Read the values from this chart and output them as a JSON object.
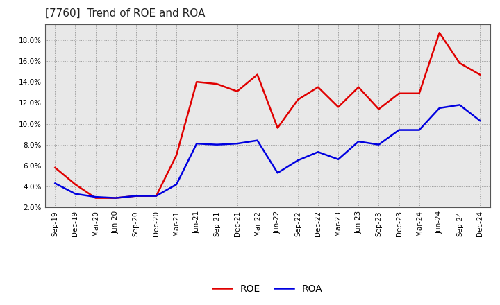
{
  "title": "[7760]  Trend of ROE and ROA",
  "labels": [
    "Sep-19",
    "Dec-19",
    "Mar-20",
    "Jun-20",
    "Sep-20",
    "Dec-20",
    "Mar-21",
    "Jun-21",
    "Sep-21",
    "Dec-21",
    "Mar-22",
    "Jun-22",
    "Sep-22",
    "Dec-22",
    "Mar-23",
    "Jun-23",
    "Sep-23",
    "Dec-23",
    "Mar-24",
    "Jun-24",
    "Sep-24",
    "Dec-24"
  ],
  "roe": [
    5.8,
    4.2,
    2.9,
    2.9,
    3.1,
    3.1,
    7.0,
    14.0,
    13.8,
    13.1,
    14.7,
    9.6,
    12.3,
    13.5,
    11.6,
    13.5,
    11.4,
    12.9,
    12.9,
    18.7,
    15.8,
    14.7
  ],
  "roa": [
    4.3,
    3.3,
    3.0,
    2.9,
    3.1,
    3.1,
    4.2,
    8.1,
    8.0,
    8.1,
    8.4,
    5.3,
    6.5,
    7.3,
    6.6,
    8.3,
    8.0,
    9.4,
    9.4,
    11.5,
    11.8,
    10.3
  ],
  "roe_color": "#e00000",
  "roa_color": "#0000e0",
  "ylim_min": 2.0,
  "ylim_max": 19.5,
  "yticks": [
    2.0,
    4.0,
    6.0,
    8.0,
    10.0,
    12.0,
    14.0,
    16.0,
    18.0
  ],
  "bg_color": "#ffffff",
  "plot_bg_color": "#e8e8e8",
  "grid_color": "#888888",
  "title_fontsize": 11,
  "legend_fontsize": 10,
  "tick_fontsize": 7.5,
  "line_width": 1.8
}
